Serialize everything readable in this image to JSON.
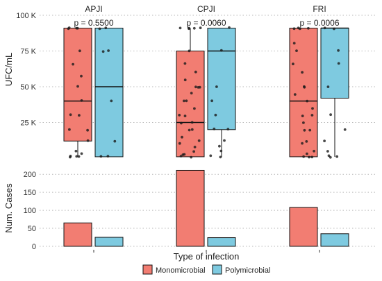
{
  "chart_data": {
    "type": "box",
    "facets": [
      "APJI",
      "CPJI",
      "FRI"
    ],
    "xlabel": "Type of infection",
    "legend": {
      "position": "bottom",
      "entries": [
        {
          "name": "Monomicrobial",
          "color": "#F27D72"
        },
        {
          "name": "Polymicrobial",
          "color": "#7ECAE0"
        }
      ]
    },
    "top_panel": {
      "ylabel": "UFC/mL",
      "ylim": [
        0,
        100000
      ],
      "yticks": [
        25000,
        50000,
        75000,
        100000
      ],
      "ytick_labels": [
        "25 K",
        "50 K",
        "75 K",
        "100 K"
      ],
      "p_values": [
        "p = 0.5500",
        "p = 0.0060",
        "p = 0.0006"
      ],
      "boxes": [
        {
          "facet": "APJI",
          "group": "Monomicrobial",
          "q1": 12000,
          "median": 40000,
          "q3": 91000,
          "whisker_low": 1000,
          "whisker_high": 91000,
          "points": [
            91000,
            91000,
            91000,
            91000,
            75000,
            66000,
            57000,
            50000,
            40000,
            30000,
            30000,
            20000,
            20000,
            12000,
            5000,
            3000,
            2000,
            1000,
            1000,
            1000
          ]
        },
        {
          "facet": "APJI",
          "group": "Polymicrobial",
          "q1": 1000,
          "median": 50000,
          "q3": 91000,
          "whisker_low": 1000,
          "whisker_high": 91000,
          "points": [
            91000,
            91000,
            75000,
            75000,
            40000,
            12000,
            1000,
            1000
          ]
        },
        {
          "facet": "CPJI",
          "group": "Monomicrobial",
          "q1": 1000,
          "median": 25000,
          "q3": 75000,
          "whisker_low": 1000,
          "whisker_high": 91000,
          "points": [
            91000,
            91000,
            91000,
            91000,
            91000,
            75000,
            66000,
            60000,
            55000,
            50000,
            50000,
            50000,
            45000,
            40000,
            40000,
            35000,
            30000,
            30000,
            25000,
            25000,
            20000,
            20000,
            15000,
            12000,
            10000,
            8000,
            5000,
            3000,
            2000,
            1000,
            1000
          ]
        },
        {
          "facet": "CPJI",
          "group": "Polymicrobial",
          "q1": 20000,
          "median": 75000,
          "q3": 91000,
          "whisker_low": 1000,
          "whisker_high": 91000,
          "points": [
            91000,
            75000,
            50000,
            40000,
            30000,
            20000,
            20000,
            12000,
            8000,
            5000,
            2000,
            1000
          ]
        },
        {
          "facet": "FRI",
          "group": "Monomicrobial",
          "q1": 1000,
          "median": 40000,
          "q3": 91000,
          "whisker_low": 1000,
          "whisker_high": 91000,
          "points": [
            91000,
            91000,
            91000,
            91000,
            80000,
            75000,
            66000,
            60000,
            50000,
            50000,
            45000,
            40000,
            35000,
            30000,
            30000,
            25000,
            20000,
            20000,
            12000,
            10000,
            5000,
            3000,
            1000,
            1000,
            1000
          ]
        },
        {
          "facet": "FRI",
          "group": "Polymicrobial",
          "q1": 42000,
          "median": 91000,
          "q3": 91000,
          "whisker_low": 1000,
          "whisker_high": 91000,
          "points": [
            91000,
            91000,
            75000,
            66000,
            50000,
            30000,
            20000,
            12000,
            5000,
            2000,
            1000,
            1000
          ]
        }
      ]
    },
    "bottom_panel": {
      "type": "bar",
      "ylabel": "Num. Cases",
      "ylim": [
        0,
        210
      ],
      "yticks": [
        0,
        50,
        100,
        150,
        200
      ],
      "ytick_labels": [
        "0",
        "50",
        "100",
        "150",
        "200"
      ],
      "bars": [
        {
          "facet": "APJI",
          "group": "Monomicrobial",
          "value": 65
        },
        {
          "facet": "APJI",
          "group": "Polymicrobial",
          "value": 25
        },
        {
          "facet": "CPJI",
          "group": "Monomicrobial",
          "value": 211
        },
        {
          "facet": "CPJI",
          "group": "Polymicrobial",
          "value": 24
        },
        {
          "facet": "FRI",
          "group": "Monomicrobial",
          "value": 108
        },
        {
          "facet": "FRI",
          "group": "Polymicrobial",
          "value": 35
        }
      ]
    }
  }
}
